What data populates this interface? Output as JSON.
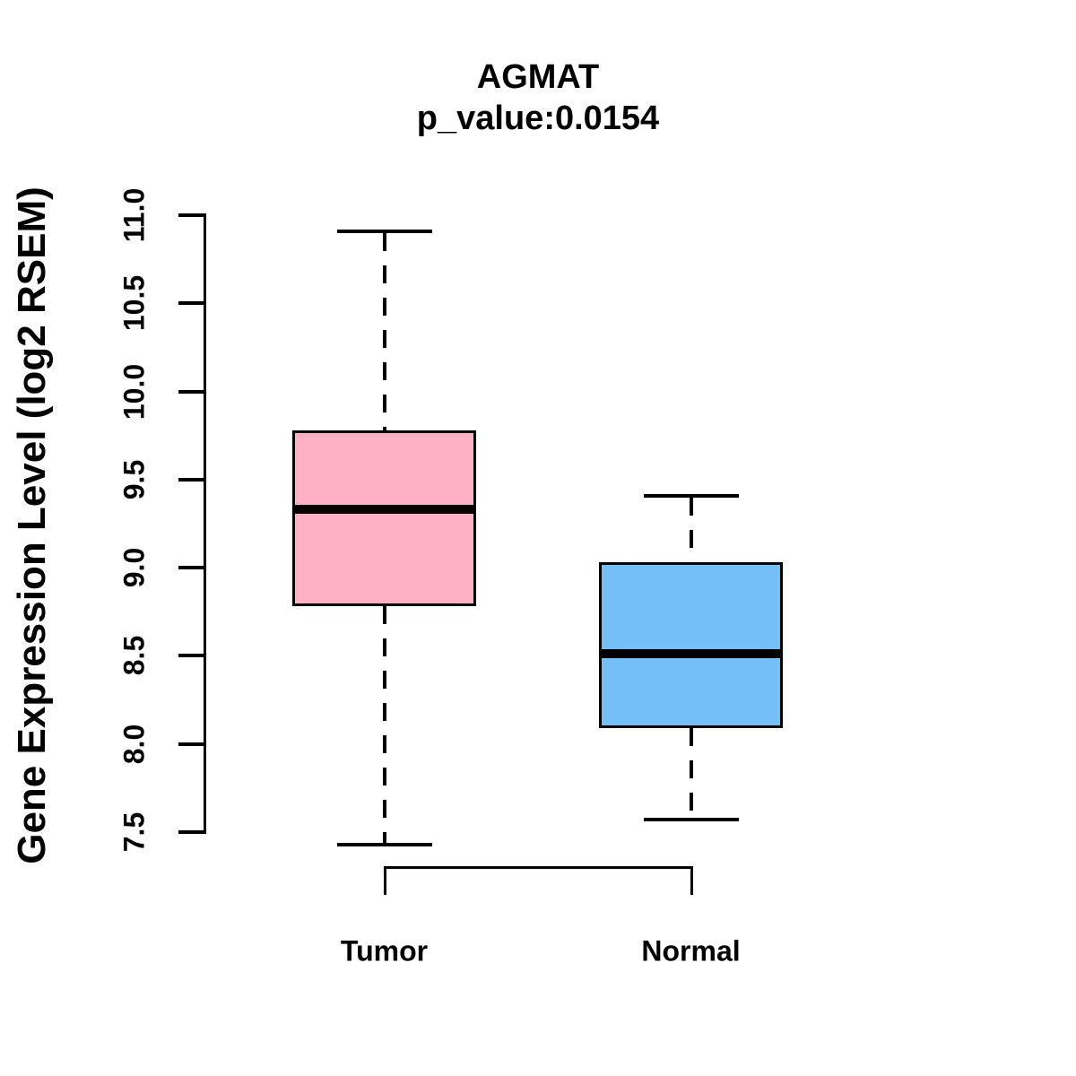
{
  "chart_data": {
    "type": "boxplot",
    "title": "AGMAT",
    "subtitle": "p_value:0.0154",
    "ylabel": "Gene Expression Level (log2 RSEM)",
    "xlabel": "",
    "ylim": [
      7.5,
      11.0
    ],
    "yticks": [
      7.5,
      8.0,
      8.5,
      9.0,
      9.5,
      10.0,
      10.5,
      11.0
    ],
    "ytick_labels": [
      "7.5",
      "8.0",
      "8.5",
      "9.0",
      "9.5",
      "10.0",
      "10.5",
      "11.0"
    ],
    "categories": [
      "Tumor",
      "Normal"
    ],
    "series": [
      {
        "name": "Tumor",
        "color": "#ffb0c4",
        "whisker_low": 7.43,
        "q1": 8.78,
        "median": 9.33,
        "q3": 9.78,
        "whisker_high": 10.91
      },
      {
        "name": "Normal",
        "color": "#74bff6",
        "whisker_low": 7.57,
        "q1": 8.09,
        "median": 8.51,
        "q3": 9.03,
        "whisker_high": 9.41
      }
    ],
    "colors": {
      "line": "#000000",
      "background": "#ffffff",
      "tumor_box": "#ffb0c4",
      "normal_box": "#74bff6"
    },
    "legend": "none",
    "grid": false
  }
}
